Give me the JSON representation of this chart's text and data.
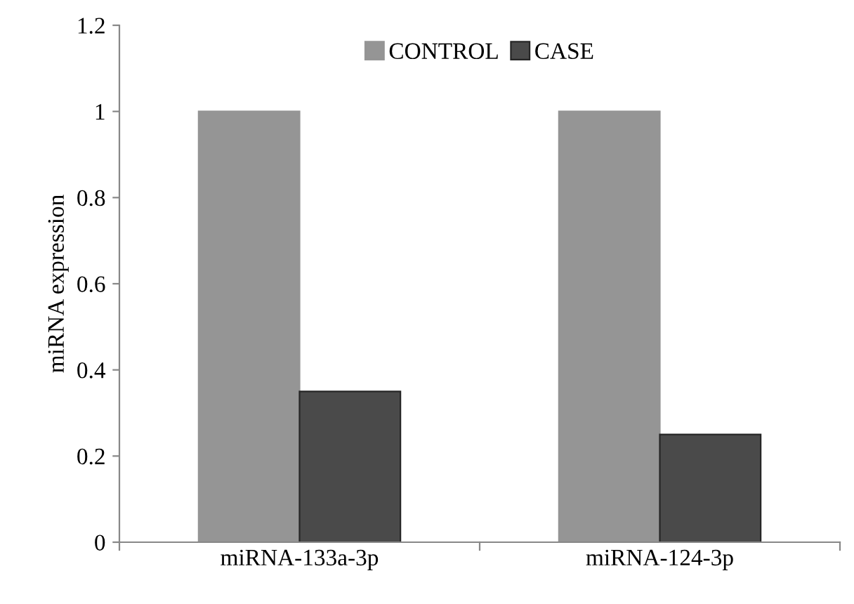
{
  "chart_data": {
    "type": "bar",
    "ylabel": "miRNA expression",
    "categories": [
      "miRNA-133a-3p",
      "miRNA-124-3p"
    ],
    "series": [
      {
        "name": "CONTROL",
        "color": "#959595",
        "values": [
          1,
          1
        ]
      },
      {
        "name": "CASE",
        "color": "#4a4a4a",
        "values": [
          0.35,
          0.25
        ]
      }
    ],
    "ylim": [
      0,
      1.2
    ],
    "yticks": [
      0,
      0.2,
      0.4,
      0.6,
      0.8,
      1,
      1.2
    ],
    "grid": false,
    "legend": "top"
  }
}
